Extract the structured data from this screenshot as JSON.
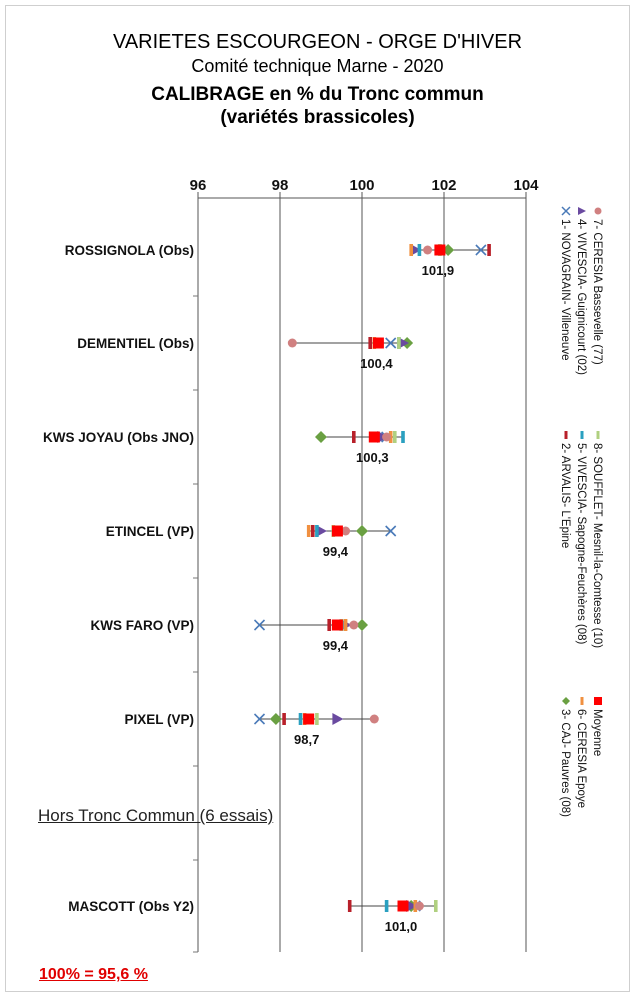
{
  "title": {
    "line1": "VARIETES ESCOURGEON - ORGE D'HIVER",
    "line2": "Comité technique Marne - 2020",
    "line3_bold": "CALIBRAGE",
    "line3_rest": " en % du Tronc commun",
    "line4": "(variétés brassicoles)"
  },
  "section_label": "Hors Tronc Commun (6 essais)",
  "footnote": "100% = 95,6 %",
  "chart_data": {
    "type": "scatter",
    "x_axis": {
      "min": 96,
      "max": 104,
      "ticks": [
        96,
        98,
        100,
        102,
        104
      ],
      "grid": true,
      "position": "top"
    },
    "categories": [
      "ROSSIGNOLA (Obs)",
      "DEMENTIEL (Obs)",
      "KWS JOYAU (Obs JNO)",
      "ETINCEL (VP)",
      "KWS FARO (VP)",
      "PIXEL (VP)",
      "MASCOTT (Obs Y2)"
    ],
    "mean_labels": [
      "101,9",
      "100,4",
      "100,3",
      "99,4",
      "99,4",
      "98,7",
      "101,0"
    ],
    "legend_position": "right-vertical",
    "series": [
      {
        "name": "1- NOVAGRAIN- Villeneuve",
        "marker": "x",
        "color": "#4a7ab8",
        "values": [
          102.9,
          100.7,
          100.6,
          100.7,
          97.5,
          97.5,
          101.3
        ]
      },
      {
        "name": "2- ARVALIS- L'Epine",
        "marker": "dash",
        "color": "#b8202a",
        "values": [
          103.1,
          100.2,
          99.8,
          98.8,
          99.2,
          98.1,
          99.7
        ]
      },
      {
        "name": "3- CAJ- Pauvres (08)",
        "marker": "diamond",
        "color": "#6aa042",
        "values": [
          102.1,
          101.1,
          99.0,
          100.0,
          100.0,
          97.9,
          101.2
        ]
      },
      {
        "name": "4- VIVESCIA- Guignicourt (02)",
        "marker": "triangle",
        "color": "#6a4aa0",
        "values": [
          101.3,
          101.0,
          100.5,
          99.0,
          99.6,
          99.4,
          101.2
        ]
      },
      {
        "name": "5- VIVESCIA- Sapogne-Feuchères (08)",
        "marker": "dash",
        "color": "#2aa0c0",
        "values": [
          101.4,
          100.9,
          101.0,
          98.9,
          99.5,
          98.5,
          100.6
        ]
      },
      {
        "name": "6- CERESIA Epoye",
        "marker": "dash",
        "color": "#f09040",
        "values": [
          101.2,
          100.3,
          100.7,
          98.7,
          99.6,
          98.6,
          101.3
        ]
      },
      {
        "name": "7- CERESIA Bassevelle (77)",
        "marker": "circle",
        "color": "#d08080",
        "values": [
          101.6,
          98.3,
          100.6,
          99.6,
          99.8,
          100.3,
          101.4
        ]
      },
      {
        "name": "8- SOUFFLET- Mesnil-la-Comtesse (10)",
        "marker": "dash",
        "color": "#b0d080",
        "values": [
          101.9,
          100.9,
          100.8,
          99.3,
          99.5,
          98.9,
          101.8
        ]
      },
      {
        "name": "Moyenne",
        "marker": "square",
        "color": "#ff0000",
        "values": [
          101.9,
          100.4,
          100.3,
          99.4,
          99.4,
          98.7,
          101.0
        ]
      }
    ]
  }
}
